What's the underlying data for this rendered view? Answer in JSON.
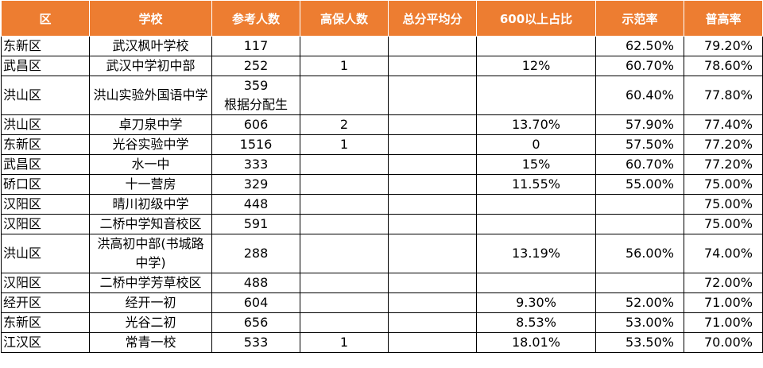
{
  "headers": [
    "区",
    "学校",
    "参考人数",
    "高保人数",
    "总分平均分",
    "600以上占比",
    "示范率",
    "普高率"
  ],
  "rows": [
    {
      "district": "东新区",
      "school": "武汉枫叶学校",
      "examinees": "117",
      "guaranteed": "",
      "avg": "",
      "above600": "",
      "demo_rate": "62.50%",
      "hs_rate": "79.20%"
    },
    {
      "district": "武昌区",
      "school": "武汉中学初中部",
      "examinees": "252",
      "guaranteed": "1",
      "avg": "",
      "above600": "12%",
      "demo_rate": "60.70%",
      "hs_rate": "78.60%"
    },
    {
      "district": "洪山区",
      "school": "洪山实验外国语中学",
      "examinees": "359",
      "examinees_note": "根据分配生",
      "guaranteed": "",
      "avg": "",
      "above600": "",
      "demo_rate": "60.40%",
      "hs_rate": "77.80%"
    },
    {
      "district": "洪山区",
      "school": "卓刀泉中学",
      "examinees": "606",
      "guaranteed": "2",
      "avg": "",
      "above600": "13.70%",
      "demo_rate": "57.90%",
      "hs_rate": "77.40%"
    },
    {
      "district": "东新区",
      "school": "光谷实验中学",
      "examinees": "1516",
      "guaranteed": "1",
      "avg": "",
      "above600": "0",
      "demo_rate": "57.50%",
      "hs_rate": "77.20%"
    },
    {
      "district": "武昌区",
      "school": "水一中",
      "examinees": "333",
      "guaranteed": "",
      "avg": "",
      "above600": "15%",
      "demo_rate": "60.70%",
      "hs_rate": "77.20%"
    },
    {
      "district": "硚口区",
      "school": "十一营房",
      "examinees": "329",
      "guaranteed": "",
      "avg": "",
      "above600": "11.55%",
      "demo_rate": "55.00%",
      "hs_rate": "75.00%"
    },
    {
      "district": "汉阳区",
      "school": "晴川初级中学",
      "examinees": "448",
      "guaranteed": "",
      "avg": "",
      "above600": "",
      "demo_rate": "",
      "hs_rate": "75.00%"
    },
    {
      "district": "汉阳区",
      "school": "二桥中学知音校区",
      "examinees": "591",
      "guaranteed": "",
      "avg": "",
      "above600": "",
      "demo_rate": "",
      "hs_rate": "75.00%"
    },
    {
      "district": "洪山区",
      "school": "洪高初中部(书城路中学)",
      "examinees": "288",
      "guaranteed": "",
      "avg": "",
      "above600": "13.19%",
      "demo_rate": "56.00%",
      "hs_rate": "74.00%"
    },
    {
      "district": "汉阳区",
      "school": "二桥中学芳草校区",
      "examinees": "488",
      "guaranteed": "",
      "avg": "",
      "above600": "",
      "demo_rate": "",
      "hs_rate": "72.00%"
    },
    {
      "district": "经开区",
      "school": "经开一初",
      "examinees": "604",
      "guaranteed": "",
      "avg": "",
      "above600": "9.30%",
      "demo_rate": "52.00%",
      "hs_rate": "71.00%"
    },
    {
      "district": "东新区",
      "school": "光谷二初",
      "examinees": "656",
      "guaranteed": "",
      "avg": "",
      "above600": "8.53%",
      "demo_rate": "53.00%",
      "hs_rate": "71.00%"
    },
    {
      "district": "江汉区",
      "school": "常青一校",
      "examinees": "533",
      "guaranteed": "1",
      "avg": "",
      "above600": "18.01%",
      "demo_rate": "53.50%",
      "hs_rate": "70.00%"
    }
  ]
}
